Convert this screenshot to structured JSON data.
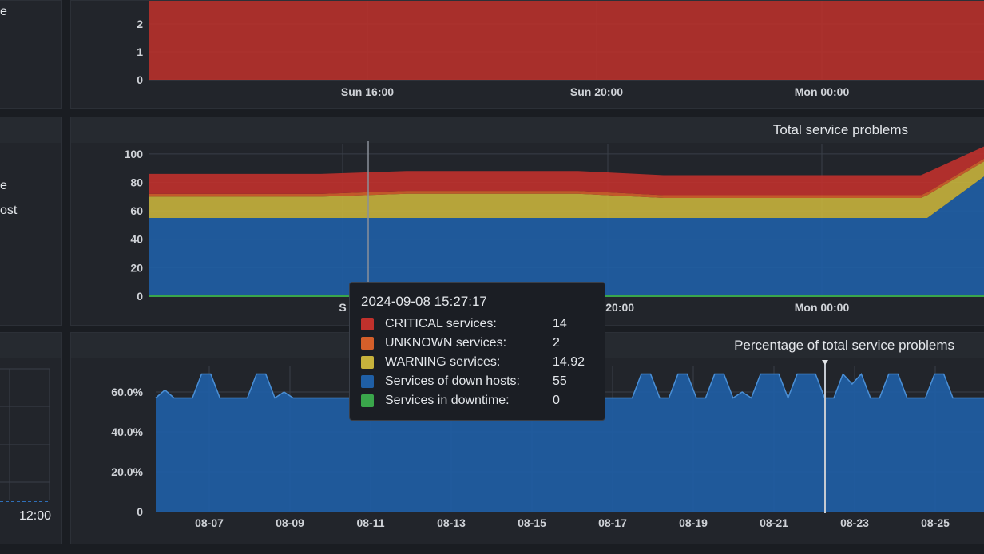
{
  "left_column": {
    "row1_label": "e",
    "row2_label_a": "e",
    "row2_label_b": "ost",
    "row3_time": "12:00"
  },
  "colors": {
    "critical": "#c0312c",
    "unknown": "#d45f2a",
    "warning": "#c7b23c",
    "down_hosts": "#1f5fa6",
    "downtime": "#3aa64b",
    "percentage_area": "#1f5fa6"
  },
  "tooltip": {
    "time": "2024-09-08 15:27:17",
    "rows": [
      {
        "label": "CRITICAL services:",
        "value": "14",
        "color": "#c0312c"
      },
      {
        "label": "UNKNOWN services:",
        "value": "2",
        "color": "#d45f2a"
      },
      {
        "label": "WARNING services:",
        "value": "14.92",
        "color": "#c7b23c"
      },
      {
        "label": "Services of down hosts:",
        "value": "55",
        "color": "#1f5fa6"
      },
      {
        "label": "Services in downtime:",
        "value": "0",
        "color": "#3aa64b"
      }
    ]
  },
  "chart_data": [
    {
      "type": "area",
      "title": "",
      "y_ticks": [
        "0",
        "1",
        "2"
      ],
      "x_ticks": [
        "Sun 16:00",
        "Sun 20:00",
        "Mon 00:00"
      ],
      "series": [
        {
          "values": [
            3,
            3,
            3,
            3,
            3,
            3,
            3,
            3
          ]
        }
      ]
    },
    {
      "type": "area",
      "title": "Total service problems",
      "y_ticks": [
        "0",
        "20",
        "40",
        "60",
        "80",
        "100"
      ],
      "x_ticks": [
        "S",
        "Sun 20:00",
        "Mon 00:00"
      ],
      "ylim": [
        0,
        110
      ],
      "stacked": true,
      "x": [
        0,
        1,
        2,
        3,
        4,
        5,
        6,
        7,
        8,
        9,
        10,
        11
      ],
      "series": [
        {
          "name": "Services of down hosts",
          "values": [
            55,
            55,
            55,
            55,
            55,
            55,
            55,
            55,
            55,
            55,
            55,
            87
          ],
          "color": "#1f5fa6"
        },
        {
          "name": "WARNING services",
          "values": [
            14.92,
            14.92,
            14.92,
            17,
            17,
            17,
            14,
            14,
            14,
            14,
            16,
            10
          ],
          "color": "#c7b23c"
        },
        {
          "name": "UNKNOWN services",
          "values": [
            2,
            2,
            2,
            2,
            2,
            2,
            2,
            2,
            2,
            2,
            2,
            2
          ],
          "color": "#d45f2a"
        },
        {
          "name": "CRITICAL services",
          "values": [
            14,
            14,
            14,
            14,
            14,
            14,
            14,
            14,
            14,
            14,
            14,
            8
          ],
          "color": "#c0312c"
        }
      ]
    },
    {
      "type": "area",
      "title": "Percentage of total service problems",
      "y_ticks": [
        "0",
        "20.0%",
        "40.0%",
        "60.0%"
      ],
      "x_ticks": [
        "08-07",
        "08-09",
        "08-11",
        "08-13",
        "08-15",
        "08-17",
        "08-19",
        "08-21",
        "08-23",
        "08-25"
      ],
      "ylim": [
        0,
        75
      ],
      "series": [
        {
          "values": [
            57,
            61,
            57,
            57,
            57,
            69,
            69,
            57,
            57,
            57,
            57,
            69,
            69,
            57,
            60,
            57,
            57,
            57,
            57,
            57,
            57,
            57,
            57,
            57,
            57,
            57,
            57,
            57,
            57,
            57,
            57,
            57,
            57,
            57,
            57,
            57,
            57,
            57,
            57,
            57,
            57,
            57,
            57,
            57,
            57,
            57,
            57,
            57,
            57,
            57,
            57,
            57,
            57,
            69,
            69,
            57,
            57,
            69,
            69,
            57,
            57,
            69,
            69,
            57,
            60,
            57,
            69,
            69,
            69,
            57,
            69,
            69,
            69,
            57,
            57,
            69,
            64,
            69,
            57,
            57,
            69,
            69,
            57,
            57,
            57,
            69,
            69,
            57,
            57,
            57,
            57,
            57
          ],
          "color": "#1f5fa6"
        }
      ]
    }
  ]
}
